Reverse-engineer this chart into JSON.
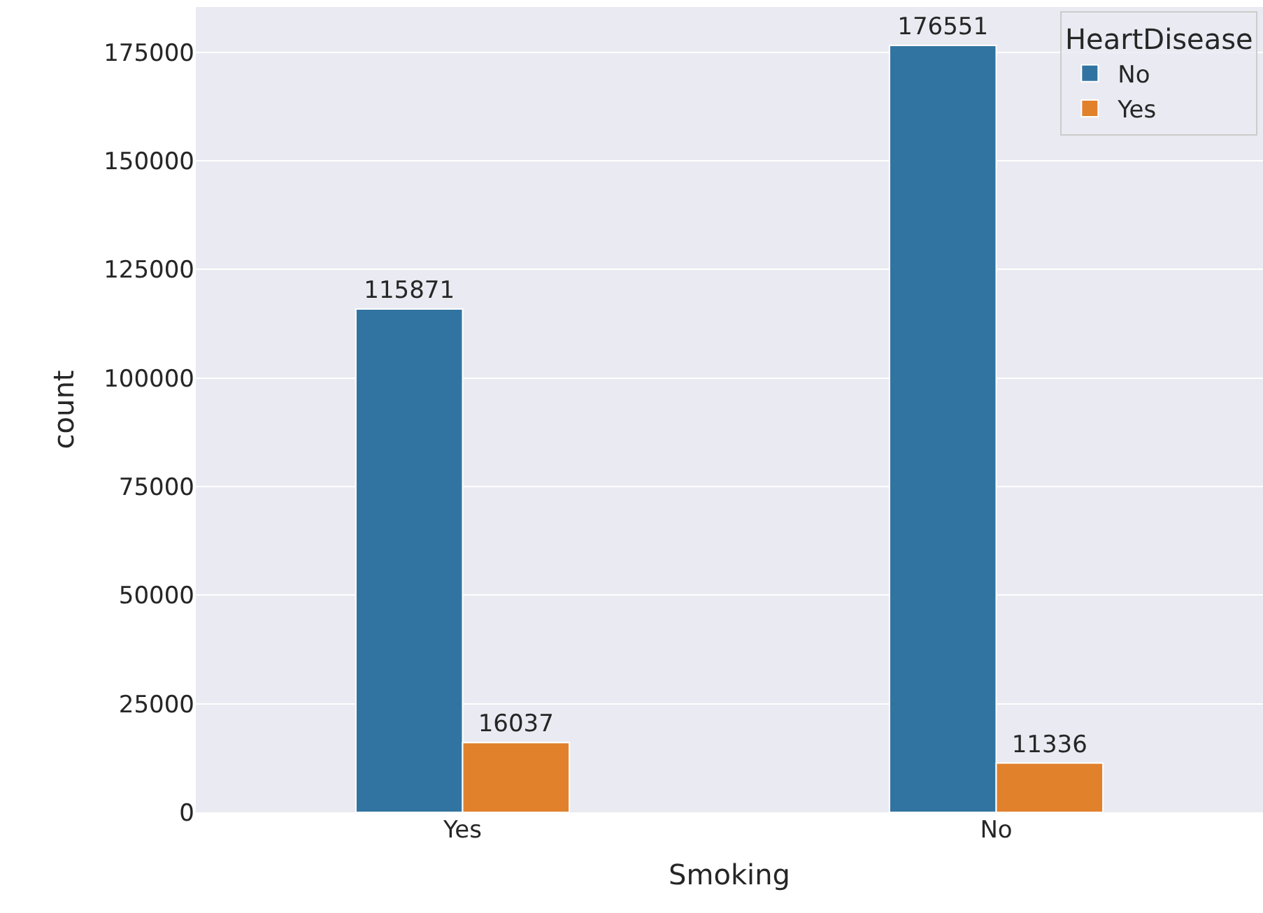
{
  "chart_data": {
    "type": "bar",
    "xlabel": "Smoking",
    "ylabel": "count",
    "legend_title": "HeartDisease",
    "categories": [
      "Yes",
      "No"
    ],
    "series": [
      {
        "name": "No",
        "color": "#3274a1",
        "values": [
          115871,
          176551
        ]
      },
      {
        "name": "Yes",
        "color": "#e1812c",
        "values": [
          16037,
          11336
        ]
      }
    ],
    "ylim": [
      0,
      185400
    ],
    "yticks": [
      0,
      25000,
      50000,
      75000,
      100000,
      125000,
      150000,
      175000
    ],
    "grid": "y",
    "legend": "top right",
    "data_labels": true
  }
}
